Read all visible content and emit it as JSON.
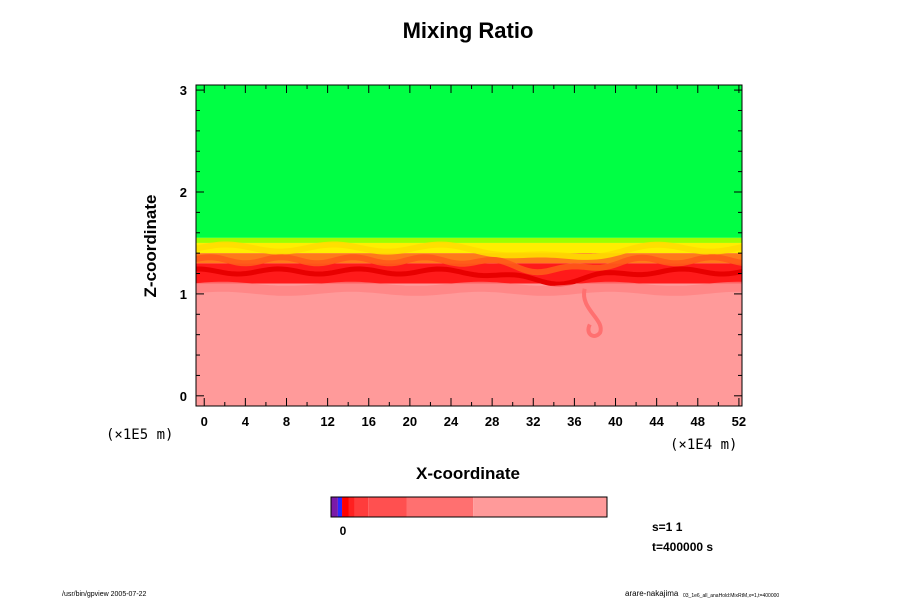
{
  "chart_data": {
    "type": "heatmap",
    "title": "Mixing Ratio",
    "xlabel": "X-coordinate",
    "ylabel": "Z-coordinate",
    "x_ticks": [
      "0",
      "4",
      "8",
      "12",
      "16",
      "20",
      "24",
      "28",
      "32",
      "36",
      "40",
      "44",
      "48",
      "52"
    ],
    "y_ticks": [
      "0",
      "1",
      "2",
      "3"
    ],
    "xlim": [
      -0.8,
      52.3
    ],
    "ylim": [
      -0.1,
      3.05
    ],
    "x_scale_label": "(×1E4 m)",
    "y_scale_label": "(×1E5 m)",
    "bands_top_to_bottom": [
      {
        "name": "upper",
        "color": "#00ff44",
        "z_from": 3.05,
        "z_to": 1.55
      },
      {
        "name": "transition-light",
        "color": "#9cff00",
        "z_from": 1.55,
        "z_to": 1.5
      },
      {
        "name": "transition-yellow",
        "color": "#ffee00",
        "z_from": 1.5,
        "z_to": 1.4
      },
      {
        "name": "interface-orange",
        "color": "#ff7a1a",
        "z_from": 1.4,
        "z_to": 1.3
      },
      {
        "name": "interface-red",
        "color": "#ff1a1a",
        "z_from": 1.3,
        "z_to": 1.1
      },
      {
        "name": "lower",
        "color": "#ff9a9a",
        "z_from": 1.1,
        "z_to": -0.1
      }
    ],
    "colorbar": {
      "segments": [
        {
          "color": "#7a1aa8",
          "fraction": 0.025
        },
        {
          "color": "#2a2aff",
          "fraction": 0.015
        },
        {
          "color": "#ff0000",
          "fraction": 0.025
        },
        {
          "color": "#ff2020",
          "fraction": 0.02
        },
        {
          "color": "#ff3c3c",
          "fraction": 0.05
        },
        {
          "color": "#ff5050",
          "fraction": 0.14
        },
        {
          "color": "#ff7070",
          "fraction": 0.24
        },
        {
          "color": "#ff9a9a",
          "fraction": 0.485
        }
      ],
      "zero_label": "0"
    },
    "annotations": {
      "s_label": "s=1 1",
      "t_label": "t=400000 s"
    }
  },
  "footer": {
    "left": "/usr/bin/gpview 2005-07-22",
    "right_main": "arare-nakajima",
    "right_sub": "03_1e6_all_anaHold:MixRtM,x=1,t=400000"
  },
  "colors": {
    "frame": "#000000",
    "text": "#000000"
  }
}
